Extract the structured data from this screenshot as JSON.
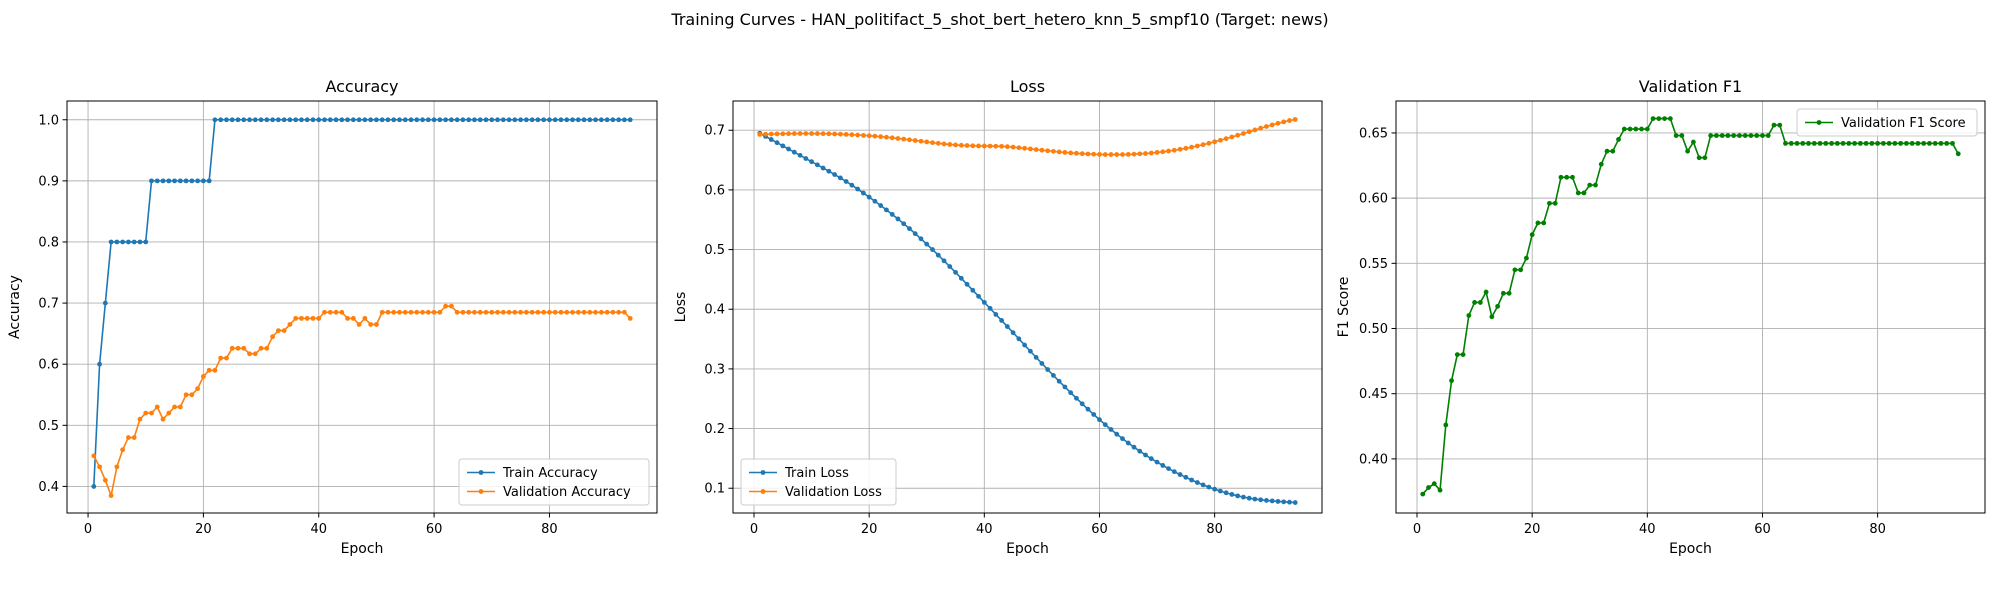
{
  "figure_title": "Training Curves - HAN_politifact_5_shot_bert_hetero_knn_5_smpf10 (Target: news)",
  "colors": {
    "train": "#1f77b4",
    "validation": "#ff7f0e",
    "f1": "#008000",
    "grid": "#b0b0b0"
  },
  "chart_data": [
    {
      "type": "line",
      "title": "Accuracy",
      "xlabel": "Epoch",
      "ylabel": "Accuracy",
      "xlim": [
        -3.65,
        98.65
      ],
      "ylim": [
        0.3565,
        1.0307
      ],
      "xticks": [
        0,
        20,
        40,
        60,
        80
      ],
      "yticks": [
        0.4,
        0.5,
        0.6,
        0.7,
        0.8,
        0.9,
        1.0
      ],
      "ytick_labels": [
        "0.4",
        "0.5",
        "0.6",
        "0.7",
        "0.8",
        "0.9",
        "1.0"
      ],
      "grid": true,
      "legend_position": "lower-right",
      "series": [
        {
          "name": "Train Accuracy",
          "color": "#1f77b4",
          "x": [
            1,
            2,
            3,
            4,
            5,
            6,
            7,
            8,
            9,
            10,
            11,
            12,
            13,
            14,
            15,
            16,
            17,
            18,
            19,
            20,
            21,
            22,
            23,
            24,
            25,
            26,
            27,
            28,
            29,
            30,
            31,
            32,
            33,
            34,
            35,
            36,
            37,
            38,
            39,
            40,
            41,
            42,
            43,
            44,
            45,
            46,
            47,
            48,
            49,
            50,
            51,
            52,
            53,
            54,
            55,
            56,
            57,
            58,
            59,
            60,
            61,
            62,
            63,
            64,
            65,
            66,
            67,
            68,
            69,
            70,
            71,
            72,
            73,
            74,
            75,
            76,
            77,
            78,
            79,
            80,
            81,
            82,
            83,
            84,
            85,
            86,
            87,
            88,
            89,
            90,
            91,
            92,
            93,
            94
          ],
          "y": [
            0.4,
            0.6,
            0.7,
            0.8,
            0.8,
            0.8,
            0.8,
            0.8,
            0.8,
            0.8,
            0.9,
            0.9,
            0.9,
            0.9,
            0.9,
            0.9,
            0.9,
            0.9,
            0.9,
            0.9,
            0.9,
            1.0,
            1.0,
            1.0,
            1.0,
            1.0,
            1.0,
            1.0,
            1.0,
            1.0,
            1.0,
            1.0,
            1.0,
            1.0,
            1.0,
            1.0,
            1.0,
            1.0,
            1.0,
            1.0,
            1.0,
            1.0,
            1.0,
            1.0,
            1.0,
            1.0,
            1.0,
            1.0,
            1.0,
            1.0,
            1.0,
            1.0,
            1.0,
            1.0,
            1.0,
            1.0,
            1.0,
            1.0,
            1.0,
            1.0,
            1.0,
            1.0,
            1.0,
            1.0,
            1.0,
            1.0,
            1.0,
            1.0,
            1.0,
            1.0,
            1.0,
            1.0,
            1.0,
            1.0,
            1.0,
            1.0,
            1.0,
            1.0,
            1.0,
            1.0,
            1.0,
            1.0,
            1.0,
            1.0,
            1.0,
            1.0,
            1.0,
            1.0,
            1.0,
            1.0,
            1.0,
            1.0,
            1.0,
            1.0
          ]
        },
        {
          "name": "Validation Accuracy",
          "color": "#ff7f0e",
          "x": [
            1,
            2,
            3,
            4,
            5,
            6,
            7,
            8,
            9,
            10,
            11,
            12,
            13,
            14,
            15,
            16,
            17,
            18,
            19,
            20,
            21,
            22,
            23,
            24,
            25,
            26,
            27,
            28,
            29,
            30,
            31,
            32,
            33,
            34,
            35,
            36,
            37,
            38,
            39,
            40,
            41,
            42,
            43,
            44,
            45,
            46,
            47,
            48,
            49,
            50,
            51,
            52,
            53,
            54,
            55,
            56,
            57,
            58,
            59,
            60,
            61,
            62,
            63,
            64,
            65,
            66,
            67,
            68,
            69,
            70,
            71,
            72,
            73,
            74,
            75,
            76,
            77,
            78,
            79,
            80,
            81,
            82,
            83,
            84,
            85,
            86,
            87,
            88,
            89,
            90,
            91,
            92,
            93,
            94
          ],
          "y": [
            0.45,
            0.432,
            0.41,
            0.385,
            0.432,
            0.46,
            0.48,
            0.48,
            0.51,
            0.52,
            0.52,
            0.53,
            0.51,
            0.52,
            0.53,
            0.53,
            0.55,
            0.55,
            0.56,
            0.58,
            0.59,
            0.59,
            0.61,
            0.61,
            0.626,
            0.626,
            0.626,
            0.617,
            0.617,
            0.626,
            0.626,
            0.645,
            0.655,
            0.655,
            0.665,
            0.675,
            0.675,
            0.675,
            0.675,
            0.675,
            0.685,
            0.685,
            0.685,
            0.685,
            0.675,
            0.675,
            0.665,
            0.675,
            0.665,
            0.665,
            0.685,
            0.685,
            0.685,
            0.685,
            0.685,
            0.685,
            0.685,
            0.685,
            0.685,
            0.685,
            0.685,
            0.695,
            0.695,
            0.685,
            0.685,
            0.685,
            0.685,
            0.685,
            0.685,
            0.685,
            0.685,
            0.685,
            0.685,
            0.685,
            0.685,
            0.685,
            0.685,
            0.685,
            0.685,
            0.685,
            0.685,
            0.685,
            0.685,
            0.685,
            0.685,
            0.685,
            0.685,
            0.685,
            0.685,
            0.685,
            0.685,
            0.685,
            0.685,
            0.675
          ]
        }
      ]
    },
    {
      "type": "line",
      "title": "Loss",
      "xlabel": "Epoch",
      "ylabel": "Loss",
      "xlim": [
        -3.65,
        98.65
      ],
      "ylim": [
        0.0585,
        0.749
      ],
      "xticks": [
        0,
        20,
        40,
        60,
        80
      ],
      "yticks": [
        0.1,
        0.2,
        0.3,
        0.4,
        0.5,
        0.6,
        0.7
      ],
      "ytick_labels": [
        "0.1",
        "0.2",
        "0.3",
        "0.4",
        "0.5",
        "0.6",
        "0.7"
      ],
      "grid": true,
      "legend_position": "lower-left",
      "series": [
        {
          "name": "Train Loss",
          "color": "#1f77b4",
          "x": [
            1,
            2,
            3,
            4,
            5,
            6,
            7,
            8,
            9,
            10,
            11,
            12,
            13,
            14,
            15,
            16,
            17,
            18,
            19,
            20,
            21,
            22,
            23,
            24,
            25,
            26,
            27,
            28,
            29,
            30,
            31,
            32,
            33,
            34,
            35,
            36,
            37,
            38,
            39,
            40,
            41,
            42,
            43,
            44,
            45,
            46,
            47,
            48,
            49,
            50,
            51,
            52,
            53,
            54,
            55,
            56,
            57,
            58,
            59,
            60,
            61,
            62,
            63,
            64,
            65,
            66,
            67,
            68,
            69,
            70,
            71,
            72,
            73,
            74,
            75,
            76,
            77,
            78,
            79,
            80,
            81,
            82,
            83,
            84,
            85,
            86,
            87,
            88,
            89,
            90,
            91,
            92,
            93,
            94
          ],
          "y": [
            0.695,
            0.6897,
            0.6844,
            0.6791,
            0.6738,
            0.6685,
            0.6632,
            0.6579,
            0.6526,
            0.6473,
            0.642,
            0.6366,
            0.6313,
            0.6258,
            0.6201,
            0.6141,
            0.6079,
            0.6014,
            0.5947,
            0.5879,
            0.581,
            0.5738,
            0.5665,
            0.559,
            0.5513,
            0.5433,
            0.5351,
            0.5267,
            0.518,
            0.5091,
            0.5,
            0.4907,
            0.4812,
            0.4716,
            0.4618,
            0.4518,
            0.4418,
            0.4317,
            0.4216,
            0.4115,
            0.4014,
            0.3913,
            0.3812,
            0.371,
            0.3607,
            0.3504,
            0.34,
            0.3296,
            0.3193,
            0.3091,
            0.299,
            0.2891,
            0.2793,
            0.2697,
            0.2602,
            0.2508,
            0.2415,
            0.2325,
            0.2236,
            0.215,
            0.2066,
            0.1985,
            0.1906,
            0.1831,
            0.1758,
            0.1688,
            0.1621,
            0.1557,
            0.1496,
            0.1438,
            0.1382,
            0.1329,
            0.1278,
            0.1229,
            0.1183,
            0.1138,
            0.1096,
            0.1056,
            0.1019,
            0.0984,
            0.0952,
            0.0923,
            0.0896,
            0.0872,
            0.0851,
            0.0833,
            0.0818,
            0.0806,
            0.0796,
            0.0787,
            0.0779,
            0.0772,
            0.0766,
            0.076
          ]
        },
        {
          "name": "Validation Loss",
          "color": "#ff7f0e",
          "x": [
            1,
            2,
            3,
            4,
            5,
            6,
            7,
            8,
            9,
            10,
            11,
            12,
            13,
            14,
            15,
            16,
            17,
            18,
            19,
            20,
            21,
            22,
            23,
            24,
            25,
            26,
            27,
            28,
            29,
            30,
            31,
            32,
            33,
            34,
            35,
            36,
            37,
            38,
            39,
            40,
            41,
            42,
            43,
            44,
            45,
            46,
            47,
            48,
            49,
            50,
            51,
            52,
            53,
            54,
            55,
            56,
            57,
            58,
            59,
            60,
            61,
            62,
            63,
            64,
            65,
            66,
            67,
            68,
            69,
            70,
            71,
            72,
            73,
            74,
            75,
            76,
            77,
            78,
            79,
            80,
            81,
            82,
            83,
            84,
            85,
            86,
            87,
            88,
            89,
            90,
            91,
            92,
            93,
            94
          ],
          "y": [
            0.693,
            0.6933,
            0.6936,
            0.6939,
            0.6941,
            0.6943,
            0.6944,
            0.6945,
            0.6945,
            0.6945,
            0.6944,
            0.6943,
            0.6941,
            0.6938,
            0.6934,
            0.693,
            0.6925,
            0.692,
            0.6914,
            0.6908,
            0.69,
            0.6892,
            0.6883,
            0.6873,
            0.6862,
            0.6851,
            0.684,
            0.6828,
            0.6816,
            0.6804,
            0.6792,
            0.6781,
            0.6771,
            0.6762,
            0.6754,
            0.6748,
            0.6743,
            0.6739,
            0.6737,
            0.6735,
            0.6734,
            0.6732,
            0.673,
            0.6725,
            0.6717,
            0.6707,
            0.6697,
            0.6687,
            0.6677,
            0.6666,
            0.6656,
            0.6646,
            0.6637,
            0.6628,
            0.662,
            0.6613,
            0.6607,
            0.6602,
            0.6598,
            0.6595,
            0.6593,
            0.6592,
            0.6592,
            0.6593,
            0.6595,
            0.6599,
            0.6604,
            0.661,
            0.6618,
            0.6628,
            0.6639,
            0.6651,
            0.6665,
            0.668,
            0.6697,
            0.6716,
            0.6736,
            0.6758,
            0.6781,
            0.6806,
            0.6832,
            0.6859,
            0.6887,
            0.6916,
            0.6945,
            0.6975,
            0.7005,
            0.7034,
            0.7063,
            0.709,
            0.7116,
            0.714,
            0.7162,
            0.718
          ]
        }
      ]
    },
    {
      "type": "line",
      "title": "Validation F1",
      "xlabel": "Epoch",
      "ylabel": "F1 Score",
      "xlim": [
        -3.65,
        98.65
      ],
      "ylim": [
        0.3585,
        0.6745
      ],
      "xticks": [
        0,
        20,
        40,
        60,
        80
      ],
      "yticks": [
        0.4,
        0.45,
        0.5,
        0.55,
        0.6,
        0.65
      ],
      "ytick_labels": [
        "0.40",
        "0.45",
        "0.50",
        "0.55",
        "0.60",
        "0.65"
      ],
      "grid": true,
      "legend_position": "upper-right",
      "series": [
        {
          "name": "Validation F1 Score",
          "color": "#008000",
          "x": [
            1,
            2,
            3,
            4,
            5,
            6,
            7,
            8,
            9,
            10,
            11,
            12,
            13,
            14,
            15,
            16,
            17,
            18,
            19,
            20,
            21,
            22,
            23,
            24,
            25,
            26,
            27,
            28,
            29,
            30,
            31,
            32,
            33,
            34,
            35,
            36,
            37,
            38,
            39,
            40,
            41,
            42,
            43,
            44,
            45,
            46,
            47,
            48,
            49,
            50,
            51,
            52,
            53,
            54,
            55,
            56,
            57,
            58,
            59,
            60,
            61,
            62,
            63,
            64,
            65,
            66,
            67,
            68,
            69,
            70,
            71,
            72,
            73,
            74,
            75,
            76,
            77,
            78,
            79,
            80,
            81,
            82,
            83,
            84,
            85,
            86,
            87,
            88,
            89,
            90,
            91,
            92,
            93,
            94
          ],
          "y": [
            0.373,
            0.378,
            0.381,
            0.376,
            0.426,
            0.46,
            0.48,
            0.48,
            0.51,
            0.52,
            0.52,
            0.528,
            0.509,
            0.517,
            0.527,
            0.527,
            0.545,
            0.545,
            0.554,
            0.572,
            0.581,
            0.581,
            0.596,
            0.596,
            0.616,
            0.616,
            0.616,
            0.604,
            0.604,
            0.61,
            0.61,
            0.626,
            0.636,
            0.636,
            0.645,
            0.653,
            0.653,
            0.653,
            0.653,
            0.653,
            0.661,
            0.661,
            0.661,
            0.661,
            0.648,
            0.648,
            0.636,
            0.643,
            0.631,
            0.631,
            0.648,
            0.648,
            0.648,
            0.648,
            0.648,
            0.648,
            0.648,
            0.648,
            0.648,
            0.648,
            0.648,
            0.656,
            0.656,
            0.642,
            0.642,
            0.642,
            0.642,
            0.642,
            0.642,
            0.642,
            0.642,
            0.642,
            0.642,
            0.642,
            0.642,
            0.642,
            0.642,
            0.642,
            0.642,
            0.642,
            0.642,
            0.642,
            0.642,
            0.642,
            0.642,
            0.642,
            0.642,
            0.642,
            0.642,
            0.642,
            0.642,
            0.642,
            0.642,
            0.634
          ]
        }
      ]
    }
  ]
}
